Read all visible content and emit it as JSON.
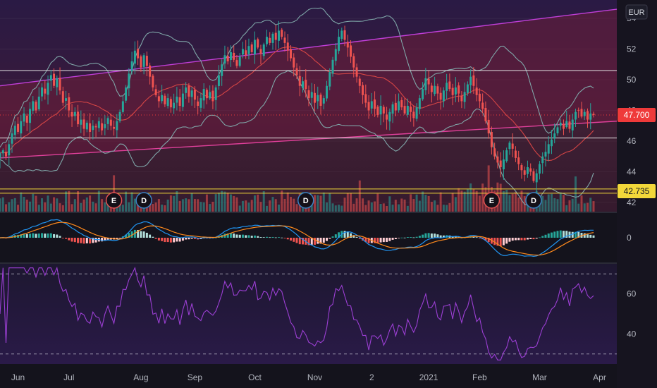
{
  "currency": "EUR",
  "chart_data": [
    {
      "type": "candlestick",
      "panel": "price",
      "ylim": [
        41.4,
        55.2
      ],
      "y_ticks": [
        42,
        44,
        46,
        48,
        50,
        52,
        54
      ],
      "last_price": 47.7,
      "last_price_label": "47.700",
      "level_label": "42.735",
      "level_value": 42.735,
      "horizontal_levels": [
        50.6,
        46.2,
        42.88,
        42.6
      ],
      "dotted_level": 47.7,
      "channel": {
        "upper": [
          49.6,
          54.6
        ],
        "lower": [
          44.9,
          47.3
        ]
      },
      "bb_width_note": "bollinger bands around closes",
      "closes": [
        45.2,
        45.4,
        45.0,
        45.8,
        46.5,
        47.0,
        46.6,
        47.3,
        47.8,
        47.2,
        48.1,
        48.6,
        48.0,
        48.9,
        49.5,
        49.1,
        49.8,
        50.3,
        49.6,
        50.1,
        49.3,
        48.5,
        48.8,
        48.0,
        47.6,
        47.9,
        47.1,
        47.4,
        46.8,
        47.2,
        46.6,
        47.0,
        46.9,
        47.3,
        46.7,
        47.1,
        47.5,
        47.0,
        46.8,
        47.3,
        47.9,
        48.6,
        49.5,
        50.4,
        51.2,
        51.9,
        51.4,
        50.8,
        51.6,
        50.9,
        50.2,
        49.5,
        49.0,
        48.6,
        49.0,
        48.4,
        48.8,
        48.2,
        48.5,
        48.9,
        48.3,
        49.1,
        49.5,
        48.9,
        49.3,
        48.7,
        48.3,
        48.8,
        49.4,
        48.8,
        49.2,
        48.6,
        49.5,
        50.3,
        51.0,
        51.6,
        51.2,
        51.8,
        51.3,
        50.9,
        51.5,
        52.0,
        51.6,
        52.2,
        51.8,
        52.6,
        52.1,
        51.7,
        52.3,
        52.8,
        52.4,
        53.0,
        52.6,
        53.2,
        52.8,
        52.4,
        51.9,
        51.4,
        50.8,
        50.3,
        49.6,
        49.9,
        49.4,
        48.8,
        49.2,
        48.5,
        49.0,
        48.3,
        48.8,
        49.6,
        50.5,
        51.3,
        52.0,
        52.8,
        53.2,
        52.6,
        52.1,
        51.5,
        50.8,
        50.2,
        49.6,
        49.0,
        48.5,
        48.0,
        48.6,
        48.1,
        47.7,
        48.3,
        47.8,
        47.4,
        47.9,
        48.4,
        48.0,
        48.6,
        48.2,
        47.8,
        48.3,
        47.9,
        47.5,
        48.2,
        48.8,
        49.4,
        50.1,
        49.7,
        49.2,
        49.6,
        49.1,
        48.7,
        49.3,
        49.8,
        49.4,
        49.0,
        49.5,
        49.1,
        48.6,
        49.2,
        49.7,
        50.2,
        49.6,
        49.0,
        48.6,
        48.1,
        47.3,
        46.5,
        45.6,
        45.0,
        44.6,
        44.3,
        44.8,
        45.4,
        45.9,
        45.5,
        44.9,
        44.5,
        44.1,
        43.8,
        44.3,
        44.0,
        43.4,
        43.9,
        44.5,
        45.0,
        45.3,
        45.8,
        46.1,
        46.5,
        46.9,
        47.2,
        46.8,
        47.3,
        46.8,
        47.4,
        47.9,
        48.0,
        47.6,
        47.9,
        47.4,
        47.8,
        47.7
      ],
      "macd_panel": {
        "ylim": [
          -0.9,
          0.9
        ],
        "zero_label": "0"
      },
      "rsi_panel": {
        "ylim": [
          25,
          75
        ],
        "y_ticks": [
          40,
          60
        ],
        "bands": [
          70,
          30
        ]
      },
      "events": [
        {
          "label": "E",
          "index": 38,
          "color": "#e35353"
        },
        {
          "label": "D",
          "index": 48,
          "color": "#3b82c4"
        },
        {
          "label": "D",
          "index": 102,
          "color": "#3b82c4"
        },
        {
          "label": "E",
          "index": 164,
          "color": "#e35353"
        },
        {
          "label": "D",
          "index": 178,
          "color": "#3b82c4"
        }
      ],
      "x_labels": [
        {
          "label": "Jun",
          "index": 6
        },
        {
          "label": "Jul",
          "index": 23
        },
        {
          "label": "Aug",
          "index": 47
        },
        {
          "label": "Sep",
          "index": 65
        },
        {
          "label": "Oct",
          "index": 85
        },
        {
          "label": "Nov",
          "index": 105
        },
        {
          "label": "2",
          "index": 124
        },
        {
          "label": "2021",
          "index": 143
        },
        {
          "label": "Feb",
          "index": 160
        },
        {
          "label": "Mar",
          "index": 180
        },
        {
          "label": "Apr",
          "index": 200
        }
      ],
      "colors": {
        "up": "#26a69a",
        "down": "#ef5350",
        "bb": "#7fa6a8",
        "ma": "#d64545",
        "macd": "#2196f3",
        "signal": "#ff8a1c",
        "rsi": "#9c3fd4",
        "channel": "#c03fd8",
        "level_white": "#e6e6e6",
        "level_yellow": "#f2d83a"
      }
    }
  ]
}
